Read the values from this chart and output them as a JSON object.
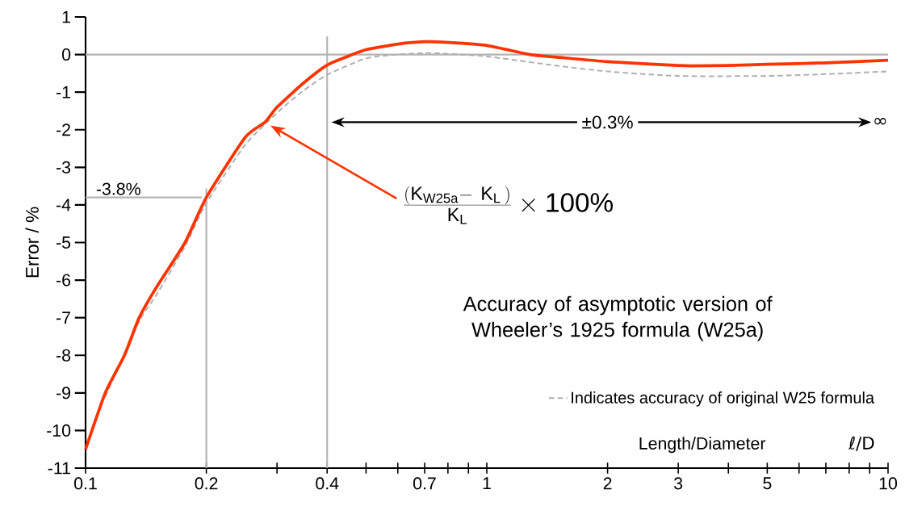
{
  "chart_data": {
    "type": "line",
    "title": "Accuracy of asymptotic version of Wheeler’s 1925 formula (W25a)",
    "xlabel": "Length/Diameter",
    "ylabel": "Error / %",
    "log": "x",
    "xlim": [
      0.1,
      10
    ],
    "ylim": [
      -11,
      1
    ],
    "xticks": [
      0.1,
      0.2,
      {
        "value": 0.3,
        "label": null
      },
      0.4,
      {
        "value": 0.5,
        "label": null
      },
      {
        "value": 0.6,
        "label": null
      },
      0.7,
      {
        "value": 0.8,
        "label": null
      },
      {
        "value": 0.9,
        "label": null
      },
      1,
      2,
      3,
      {
        "value": 4,
        "label": null
      },
      5,
      {
        "value": 6,
        "label": null
      },
      {
        "value": 7,
        "label": null
      },
      {
        "value": 8,
        "label": null
      },
      {
        "value": 9,
        "label": null
      },
      10
    ],
    "yticks": [
      -11,
      -10,
      -9,
      -8,
      -7,
      -6,
      -5,
      -4,
      -3,
      -2,
      -1,
      0,
      1
    ],
    "series": [
      {
        "color": "#ff3300",
        "line_style": "solid",
        "x": [
          0.1,
          0.112,
          0.125,
          0.136,
          0.15,
          0.177,
          0.2,
          0.25,
          0.28,
          0.3,
          0.35,
          0.4,
          0.45,
          0.5,
          0.6,
          0.7,
          0.8,
          1,
          1.28,
          1.5,
          2,
          3,
          3.24,
          4,
          5,
          7,
          10
        ],
        "values": [
          -10.5,
          -9,
          -8,
          -7,
          -6.2,
          -5,
          -3.8,
          -2.2,
          -1.8,
          -1.4,
          -0.75,
          -0.28,
          -0.05,
          0.13,
          0.28,
          0.34,
          0.32,
          0.24,
          0,
          -0.07,
          -0.19,
          -0.29,
          -0.3,
          -0.29,
          -0.26,
          -0.22,
          -0.15
        ]
      },
      {
        "name": "Indicates accuracy of original W25 formula",
        "color": "#b0b0b0",
        "line_style": "dashed",
        "x": [
          0.112,
          0.136,
          0.15,
          0.177,
          0.2,
          0.25,
          0.3,
          0.35,
          0.4,
          0.5,
          0.6,
          0.7,
          0.8,
          1,
          1.5,
          2,
          3,
          5,
          7,
          10
        ],
        "values": [
          -9.1,
          -7.1,
          -6.4,
          -5.1,
          -3.95,
          -2.4,
          -1.55,
          -0.95,
          -0.54,
          -0.1,
          0,
          0.04,
          0.02,
          -0.05,
          -0.3,
          -0.45,
          -0.57,
          -0.57,
          -0.52,
          -0.45
        ]
      }
    ],
    "ref_lines": [
      {
        "axis": "y",
        "value": 0,
        "color": "#b4b4b4"
      },
      {
        "axis": "y",
        "value": -3.8,
        "label": "-3.8%",
        "color": "#b4b4b4"
      },
      {
        "axis": "x",
        "value": 0.2,
        "color": "#b4b4b4"
      },
      {
        "axis": "x",
        "value": 0.4,
        "color": "#b4b4b4"
      }
    ],
    "annotations": [
      "\\frac{(\\mathrm{K}_{\\mathrm{W25a}}\\mathrm{-}\\ \\mathrm{K}_{\\mathrm{L}}\\,)}{\\mathrm{K}_{\\mathrm{L}}}\\times\\mathrm{100\\%}",
      "±0.3%",
      "∞",
      "ℓ/D"
    ],
    "legend": "bottom right"
  }
}
